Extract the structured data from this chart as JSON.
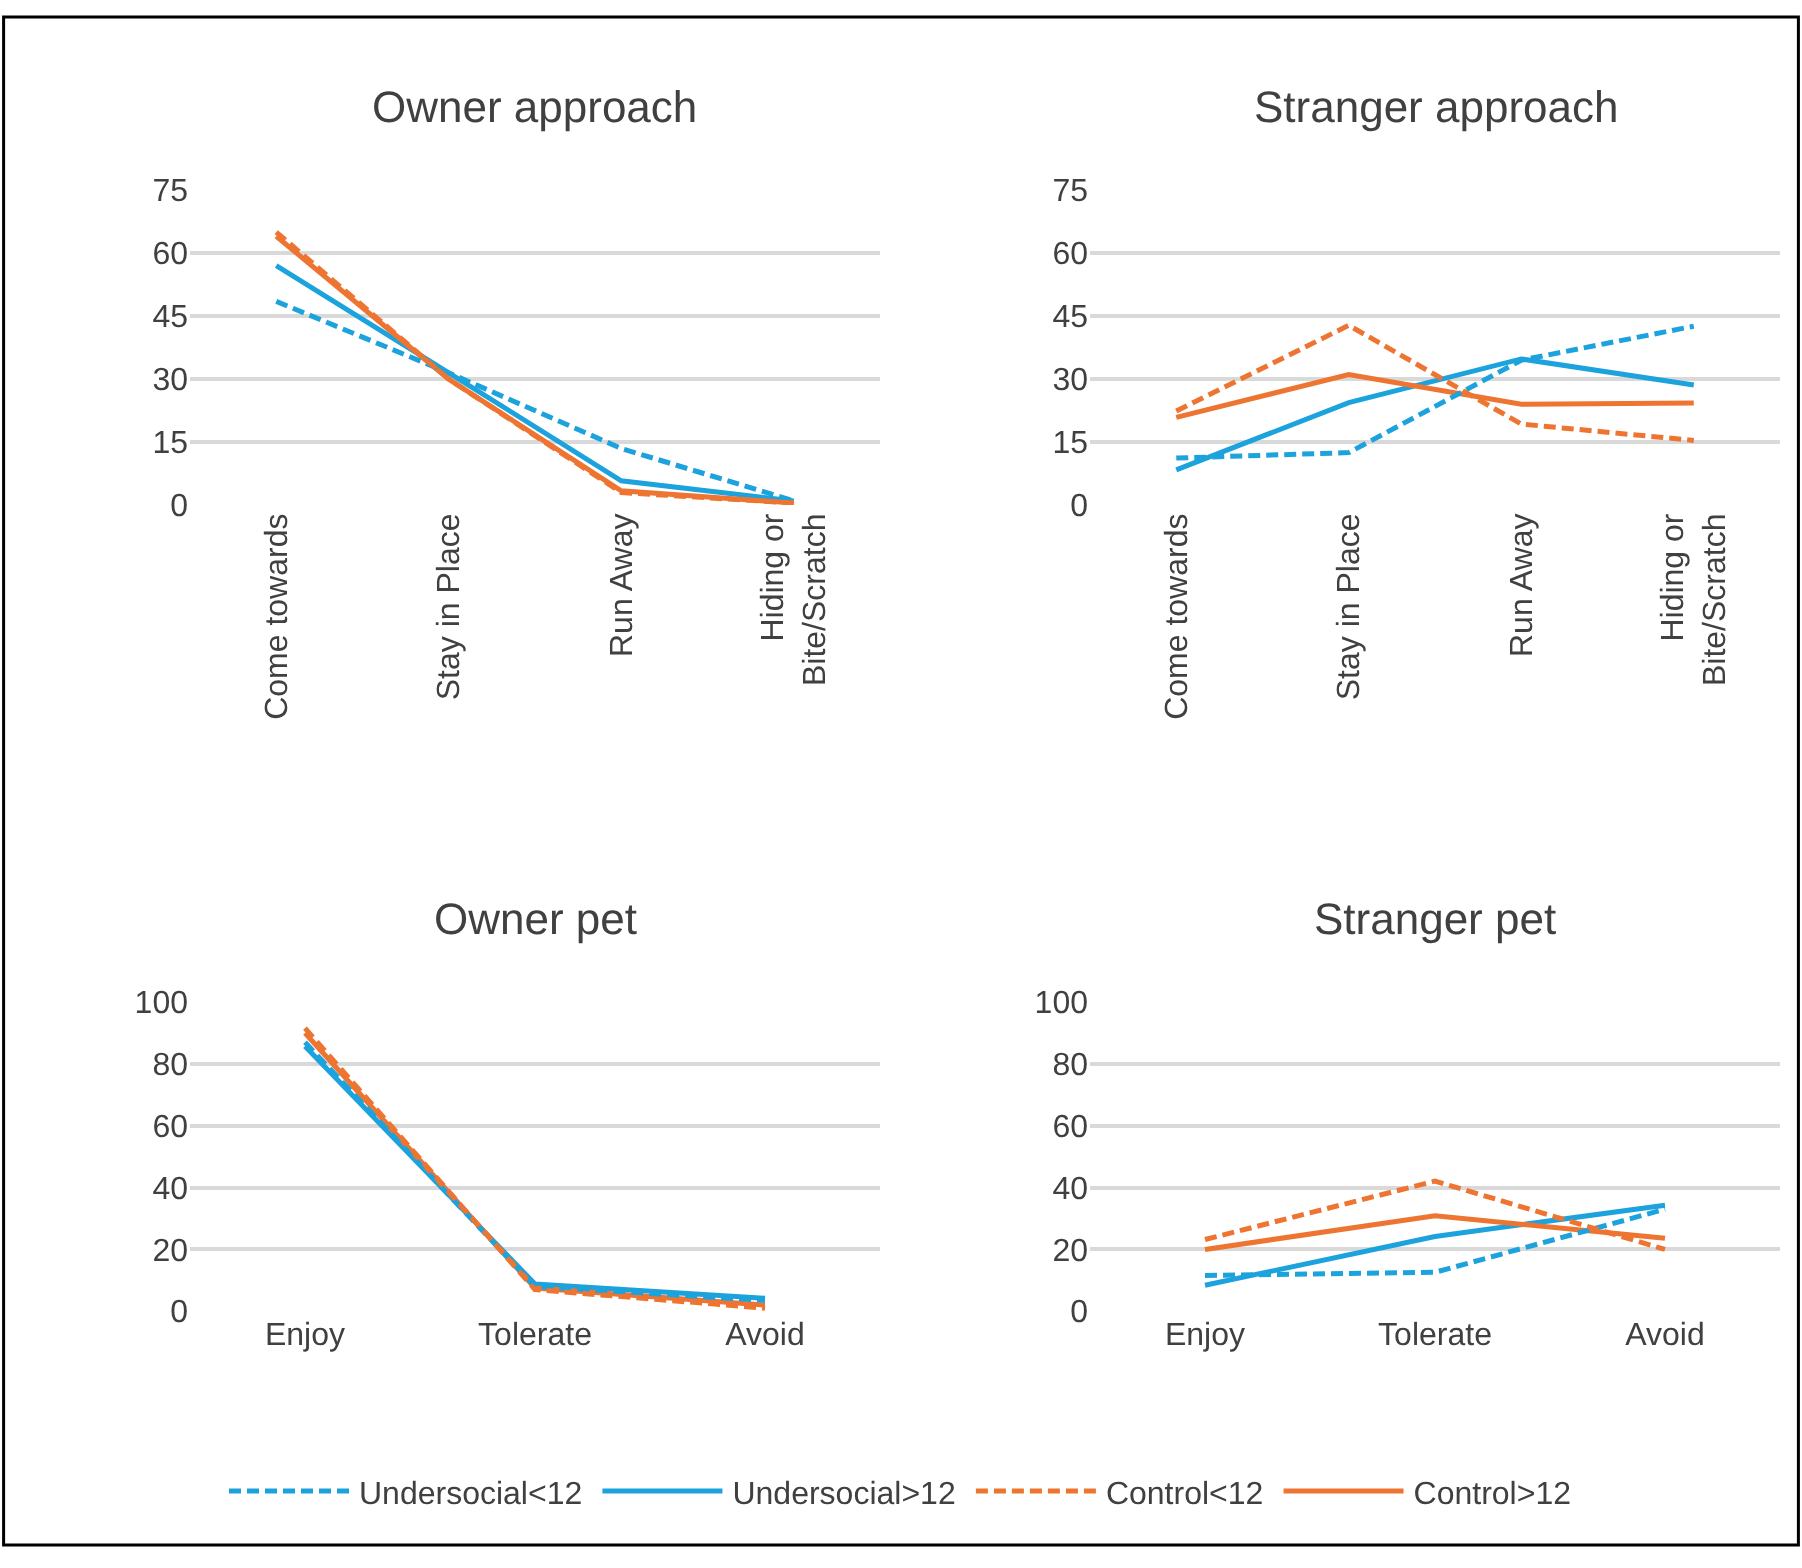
{
  "chart_data": [
    {
      "type": "line",
      "title": "Owner approach",
      "categories": [
        "Come towards",
        "Stay in Place",
        "Run Away",
        "Hiding or\nBite/Scratch"
      ],
      "ylim": [
        0,
        75
      ],
      "yticks": [
        0,
        15,
        30,
        45,
        60,
        75
      ],
      "grid": "y",
      "legend": "bottom",
      "marker": "none",
      "series": [
        {
          "name": "Undersocial<12",
          "color": "#1ca3dd",
          "line_style": "dashed",
          "values": [
            48.5,
            31.5,
            13.5,
            1
          ]
        },
        {
          "name": "Undersocial>12",
          "color": "#1ca3dd",
          "line_style": "solid",
          "values": [
            57,
            31.5,
            5.8,
            1
          ]
        },
        {
          "name": "Control<12",
          "color": "#ee7531",
          "line_style": "dashed",
          "values": [
            65,
            30,
            3,
            0.5
          ]
        },
        {
          "name": "Control>12",
          "color": "#ee7531",
          "line_style": "solid",
          "values": [
            64,
            30,
            3.4,
            0.5
          ]
        }
      ]
    },
    {
      "type": "line",
      "title": "Stranger approach",
      "categories": [
        "Come towards",
        "Stay in Place",
        "Run Away",
        "Hiding or\nBite/Scratch"
      ],
      "ylim": [
        0,
        75
      ],
      "yticks": [
        0,
        15,
        30,
        45,
        60,
        75
      ],
      "grid": "y",
      "marker": "none",
      "series": [
        {
          "color": "#1ca3dd",
          "line_style": "dashed",
          "values": [
            11.2,
            12.5,
            34.5,
            42.6
          ]
        },
        {
          "color": "#1ca3dd",
          "line_style": "solid",
          "values": [
            8.4,
            24.4,
            34.8,
            28.6
          ]
        },
        {
          "color": "#ee7531",
          "line_style": "dashed",
          "values": [
            22.4,
            42.8,
            19.3,
            15.4
          ]
        },
        {
          "color": "#ee7531",
          "line_style": "solid",
          "values": [
            20.9,
            31.1,
            24,
            24.3
          ]
        }
      ]
    },
    {
      "type": "line",
      "title": "Owner pet",
      "categories": [
        "Enjoy",
        "Tolerate",
        "Avoid"
      ],
      "ylim": [
        0,
        100
      ],
      "yticks": [
        0,
        20,
        40,
        60,
        80,
        100
      ],
      "grid": "y",
      "marker": "none",
      "series": [
        {
          "color": "#1ca3dd",
          "line_style": "dashed",
          "values": [
            87,
            8,
            3.5
          ]
        },
        {
          "color": "#1ca3dd",
          "line_style": "solid",
          "values": [
            85.7,
            8.8,
            4.2
          ]
        },
        {
          "color": "#ee7531",
          "line_style": "dashed",
          "values": [
            91.6,
            7,
            1
          ]
        },
        {
          "color": "#ee7531",
          "line_style": "solid",
          "values": [
            90,
            7.5,
            2
          ]
        }
      ]
    },
    {
      "type": "line",
      "title": "Stranger pet",
      "categories": [
        "Enjoy",
        "Tolerate",
        "Avoid"
      ],
      "ylim": [
        0,
        100
      ],
      "yticks": [
        0,
        20,
        40,
        60,
        80,
        100
      ],
      "grid": "y",
      "marker": "none",
      "series": [
        {
          "color": "#1ca3dd",
          "line_style": "dashed",
          "values": [
            11.6,
            12.6,
            33
          ]
        },
        {
          "color": "#1ca3dd",
          "line_style": "solid",
          "values": [
            8.4,
            24.2,
            34.3
          ]
        },
        {
          "color": "#ee7531",
          "line_style": "dashed",
          "values": [
            23.2,
            42.1,
            20
          ]
        },
        {
          "color": "#ee7531",
          "line_style": "solid",
          "values": [
            20,
            30.9,
            23.6
          ]
        }
      ]
    }
  ]
}
